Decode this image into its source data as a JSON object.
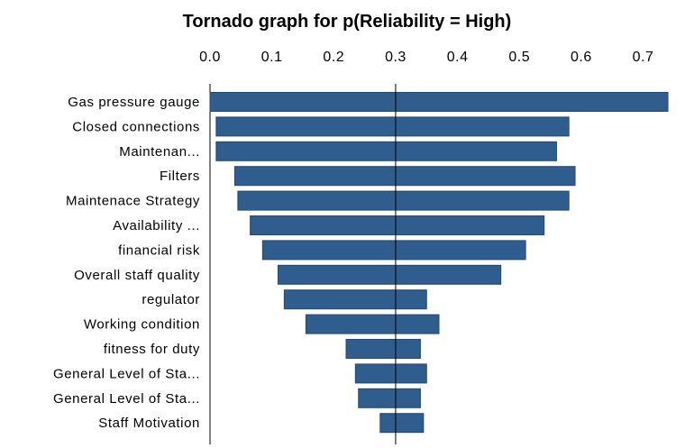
{
  "chart_data": {
    "type": "bar",
    "orientation": "horizontal",
    "title": "Tornado graph for p(Reliability = High)",
    "xlabel": "",
    "ylabel": "",
    "xlim": [
      0.0,
      0.75
    ],
    "xticks": [
      0.0,
      0.1,
      0.2,
      0.3,
      0.4,
      0.5,
      0.6,
      0.7
    ],
    "xtick_labels": [
      "0.0",
      "0.1",
      "0.2",
      "0.3",
      "0.4",
      "0.5",
      "0.6",
      "0.7"
    ],
    "reference_value": 0.3,
    "bar_color": "#2f5d8e",
    "grid": false,
    "categories": [
      "Gas pressure gauge",
      "Closed connections",
      "Maintenan...",
      "Filters",
      "Maintenace Strategy",
      "Availability ...",
      "financial risk",
      "Overall staff quality",
      "regulator",
      "Working condition",
      "fitness for duty",
      "General Level of Sta...",
      "General Level of Sta...",
      "Staff Motivation"
    ],
    "ranges": [
      [
        0.0,
        0.74
      ],
      [
        0.01,
        0.58
      ],
      [
        0.01,
        0.56
      ],
      [
        0.04,
        0.59
      ],
      [
        0.045,
        0.58
      ],
      [
        0.065,
        0.54
      ],
      [
        0.085,
        0.51
      ],
      [
        0.11,
        0.47
      ],
      [
        0.12,
        0.35
      ],
      [
        0.155,
        0.37
      ],
      [
        0.22,
        0.34
      ],
      [
        0.235,
        0.35
      ],
      [
        0.24,
        0.34
      ],
      [
        0.275,
        0.345
      ]
    ]
  }
}
